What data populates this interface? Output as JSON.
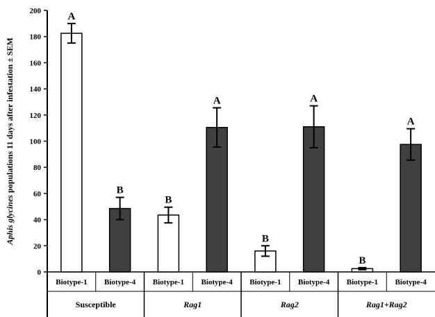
{
  "chart_data": {
    "type": "bar",
    "title": "",
    "ylabel": {
      "italic_part": "Aphis glycines",
      "rest": " populations 11 days after infestation ± SEM"
    },
    "ylim": [
      0,
      200
    ],
    "yticks": [
      "0",
      "20",
      "40",
      "60",
      "80",
      "100",
      "120",
      "140",
      "160",
      "180",
      "200"
    ],
    "grid": false,
    "legend": "none",
    "groups": [
      {
        "label": "Susceptible",
        "italic": false
      },
      {
        "label": "Rag1",
        "italic": true
      },
      {
        "label": "Rag2",
        "italic": true
      },
      {
        "label": "Rag1+Rag2",
        "italic": true
      }
    ],
    "categories": [
      "Biotype-1",
      "Biotype-4",
      "Biotype-1",
      "Biotype-4",
      "Biotype-1",
      "Biotype-4",
      "Biotype-1",
      "Biotype-4"
    ],
    "values": [
      182.5,
      48.5,
      43.5,
      110.5,
      16,
      111,
      2.5,
      97.5
    ],
    "errors": [
      7.5,
      8.5,
      6,
      15,
      4,
      16,
      0.8,
      12
    ],
    "significance": [
      "A",
      "B",
      "B",
      "A",
      "B",
      "A",
      "B",
      "A"
    ],
    "colors": {
      "Biotype-1": "#ffffff",
      "Biotype-4": "#404040",
      "stroke": "#000000"
    }
  }
}
